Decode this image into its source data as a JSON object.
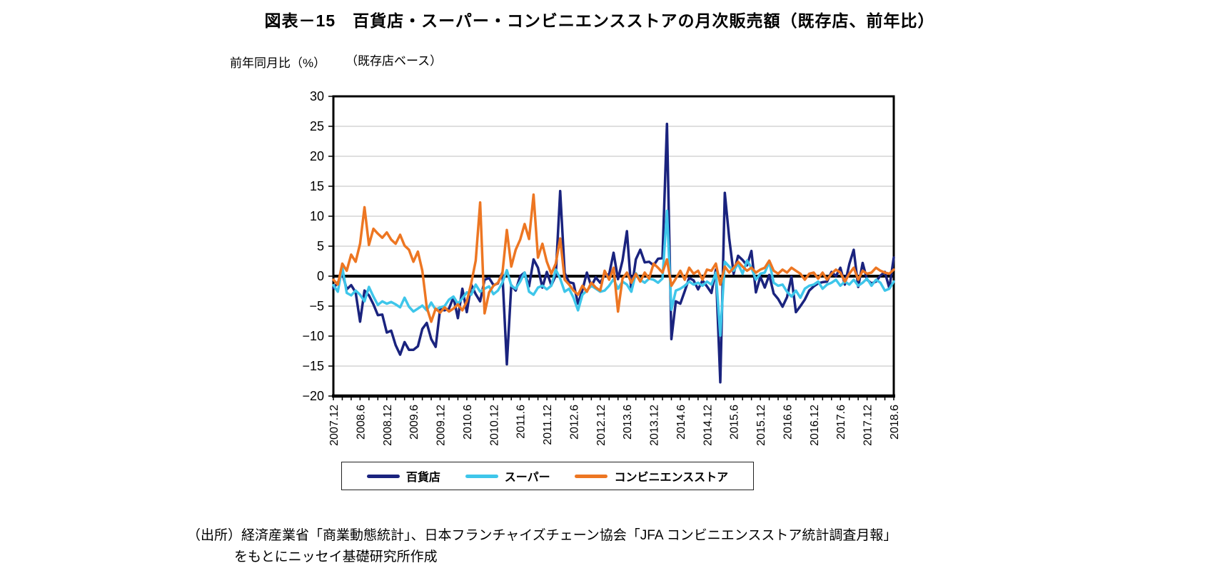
{
  "title": "図表－15　百貨店・スーパー・コンビニエンスストアの月次販売額（既存店、前年比）",
  "y_unit_label": "前年同月比（%）",
  "basis_note": "（既存店ベース）",
  "source": {
    "line1": "（出所）経済産業省「商業動態統計」、日本フランチャイズチェーン協会「JFA コンビニエンスストア統計調査月報」",
    "line2": "をもとにニッセイ基礎研究所作成"
  },
  "colors": {
    "department": "#1A237E",
    "supermarket": "#3EC6EA",
    "convenience": "#ED7622",
    "grid": "#BFBFBF",
    "axis": "#000000"
  },
  "chart_data": {
    "type": "line",
    "x_start": "2007.12",
    "x_end": "2018.6",
    "x_frequency": "monthly",
    "x_tick_labels": [
      "2007.12",
      "2008.6",
      "2008.12",
      "2009.6",
      "2009.12",
      "2010.6",
      "2010.12",
      "2011.6",
      "2011.12",
      "2012.6",
      "2012.12",
      "2013.6",
      "2013.12",
      "2014.6",
      "2014.12",
      "2015.6",
      "2015.12",
      "2016.6",
      "2016.12",
      "2017.6",
      "2017.12",
      "2018.6"
    ],
    "y_tick_labels": [
      "30",
      "25",
      "20",
      "15",
      "10",
      "5",
      "0",
      "−5",
      "−10",
      "−15",
      "−20"
    ],
    "ylim": [
      -20,
      30
    ],
    "y_tick_step": 5,
    "grid": true,
    "legend_position": "bottom",
    "series": [
      {
        "name": "百貨店",
        "color": "#1A237E",
        "values": [
          -2.0,
          -1.1,
          0.5,
          -2.2,
          -1.5,
          -2.7,
          -7.6,
          -2.4,
          -3.2,
          -4.7,
          -6.5,
          -6.4,
          -9.4,
          -9.1,
          -11.5,
          -13.1,
          -11.0,
          -12.3,
          -12.3,
          -11.7,
          -8.8,
          -7.8,
          -10.5,
          -11.8,
          -5.5,
          -5.7,
          -5.4,
          -3.5,
          -7.0,
          -2.1,
          -6.0,
          -1.4,
          -3.0,
          -4.2,
          -0.6,
          -0.3,
          -1.5,
          -1.2,
          0.6,
          -14.7,
          -1.5,
          -2.4,
          0.0,
          0.6,
          -1.7,
          2.8,
          1.4,
          -1.9,
          0.7,
          -1.5,
          0.1,
          14.2,
          0.5,
          -1.0,
          -1.2,
          -4.6,
          -2.3,
          0.6,
          -1.7,
          -0.2,
          -1.1,
          0.2,
          0.3,
          3.9,
          -0.5,
          2.6,
          7.5,
          -2.5,
          2.8,
          4.4,
          2.3,
          2.4,
          1.8,
          2.9,
          3.0,
          25.4,
          -10.5,
          -4.2,
          -4.6,
          -2.5,
          -0.3,
          -0.7,
          -2.2,
          -0.7,
          -1.7,
          -2.8,
          1.1,
          -17.7,
          13.9,
          6.3,
          0.4,
          3.4,
          2.7,
          1.8,
          4.2,
          -2.7,
          -0.1,
          -1.9,
          0.2,
          -2.9,
          -3.8,
          -5.1,
          -3.5,
          -0.1,
          -6.0,
          -5.0,
          -3.9,
          -2.4,
          -1.7,
          -1.2,
          -1.0,
          -0.9,
          0.7,
          0.0,
          1.4,
          -1.4,
          2.0,
          4.4,
          -1.8,
          2.2,
          -0.6,
          -1.2,
          -0.9,
          0.1,
          0.7,
          -2.0,
          3.1
        ]
      },
      {
        "name": "スーパー",
        "color": "#3EC6EA",
        "values": [
          -1.5,
          -2.6,
          1.5,
          -2.8,
          -3.2,
          -2.4,
          -3.1,
          -4.2,
          -1.8,
          -3.4,
          -4.8,
          -4.2,
          -4.6,
          -4.3,
          -4.7,
          -5.2,
          -3.6,
          -5.1,
          -5.9,
          -5.4,
          -4.9,
          -5.7,
          -4.4,
          -5.6,
          -5.2,
          -5.0,
          -3.9,
          -3.4,
          -4.6,
          -3.7,
          -2.7,
          -3.1,
          -1.4,
          -2.6,
          -2.1,
          -1.7,
          -3.0,
          -2.4,
          -1.1,
          1.0,
          -1.6,
          -2.1,
          -0.9,
          0.6,
          -2.6,
          -3.1,
          -1.9,
          -1.6,
          -2.2,
          -1.6,
          1.1,
          -0.4,
          -2.6,
          -2.1,
          -3.6,
          -5.7,
          -3.1,
          -2.4,
          -1.6,
          -2.1,
          -2.6,
          -2.4,
          -1.6,
          -0.5,
          -2.1,
          -0.9,
          -1.4,
          -2.6,
          0.5,
          -0.6,
          -1.1,
          -0.4,
          -0.6,
          -1.1,
          -0.4,
          10.9,
          -5.6,
          -2.4,
          -2.1,
          -1.6,
          -0.9,
          -1.4,
          -1.1,
          -1.6,
          -0.9,
          -1.4,
          0.6,
          -9.9,
          2.4,
          1.6,
          0.9,
          2.1,
          0.4,
          2.6,
          1.4,
          -0.6,
          0.4,
          0.6,
          2.4,
          -1.1,
          -1.6,
          -1.4,
          -2.6,
          -3.4,
          -2.4,
          -3.6,
          -2.1,
          -1.6,
          -1.4,
          -0.9,
          -2.1,
          -1.4,
          -1.1,
          -0.6,
          -1.6,
          -0.9,
          -1.4,
          -0.6,
          -1.6,
          -1.1,
          -0.4,
          -1.6,
          -0.6,
          -1.1,
          -2.4,
          -2.1,
          -0.9
        ]
      },
      {
        "name": "コンビニエンスストア",
        "color": "#ED7622",
        "values": [
          -0.6,
          -1.4,
          2.1,
          0.9,
          3.6,
          2.4,
          5.4,
          11.5,
          5.2,
          7.9,
          7.1,
          6.4,
          7.3,
          6.1,
          5.4,
          6.9,
          5.1,
          4.4,
          2.4,
          4.1,
          0.9,
          -5.2,
          -7.6,
          -5.4,
          -6.1,
          -5.2,
          -5.9,
          -5.4,
          -4.7,
          -5.7,
          -4.2,
          -1.2,
          2.6,
          12.3,
          -6.2,
          -2.7,
          -1.6,
          -1.1,
          0.4,
          7.7,
          1.6,
          4.4,
          6.1,
          8.7,
          6.2,
          13.6,
          3.1,
          5.4,
          2.4,
          0.4,
          2.1,
          6.3,
          -0.6,
          -1.4,
          -2.4,
          -3.1,
          -1.6,
          -2.6,
          -1.1,
          -1.9,
          -2.4,
          0.9,
          -0.6,
          1.4,
          -5.9,
          -0.4,
          0.6,
          -1.1,
          0.4,
          -0.9,
          0.6,
          -0.4,
          2.1,
          1.4,
          0.6,
          2.8,
          -1.6,
          -0.4,
          0.9,
          -0.6,
          1.4,
          0.4,
          0.9,
          -0.6,
          1.1,
          0.9,
          2.1,
          -1.4,
          1.6,
          0.6,
          1.4,
          2.4,
          1.6,
          0.9,
          1.4,
          0.6,
          1.1,
          1.4,
          2.6,
          0.9,
          0.4,
          1.1,
          0.6,
          1.4,
          0.9,
          0.4,
          -0.6,
          0.4,
          0.6,
          -0.4,
          0.6,
          -0.6,
          0.4,
          1.1,
          0.6,
          -0.9,
          0.4,
          1.4,
          -0.6,
          0.9,
          0.4,
          0.6,
          1.4,
          0.9,
          0.6,
          0.4,
          1.1
        ]
      }
    ]
  }
}
